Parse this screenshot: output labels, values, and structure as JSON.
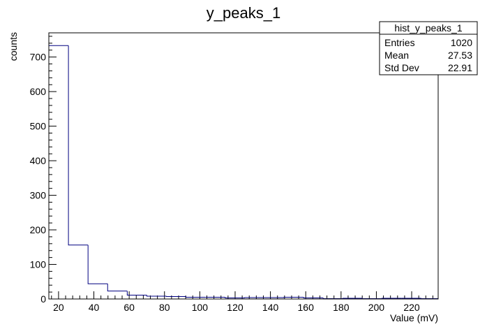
{
  "chart_data": {
    "type": "bar",
    "title": "y_peaks_1",
    "xlabel": "Value (mV)",
    "ylabel": "counts",
    "xlim": [
      14.5,
      235
    ],
    "ylim": [
      0,
      770
    ],
    "x_ticks": [
      20,
      40,
      60,
      80,
      100,
      120,
      140,
      160,
      180,
      200,
      220
    ],
    "y_ticks": [
      0,
      100,
      200,
      300,
      400,
      500,
      600,
      700
    ],
    "bins": [
      {
        "low": 14.5,
        "high": 25.6,
        "count": 733
      },
      {
        "low": 25.6,
        "high": 36.7,
        "count": 156
      },
      {
        "low": 36.7,
        "high": 47.8,
        "count": 44
      },
      {
        "low": 47.8,
        "high": 58.9,
        "count": 23
      },
      {
        "low": 58.9,
        "high": 70.0,
        "count": 11
      },
      {
        "low": 70.0,
        "high": 81.1,
        "count": 8
      },
      {
        "low": 81.1,
        "high": 92.2,
        "count": 7
      },
      {
        "low": 92.2,
        "high": 103.3,
        "count": 5
      },
      {
        "low": 103.3,
        "high": 114.4,
        "count": 5
      },
      {
        "low": 114.4,
        "high": 125.5,
        "count": 3
      },
      {
        "low": 125.5,
        "high": 136.6,
        "count": 4
      },
      {
        "low": 136.6,
        "high": 147.7,
        "count": 4
      },
      {
        "low": 147.7,
        "high": 158.8,
        "count": 5
      },
      {
        "low": 158.8,
        "high": 169.9,
        "count": 3
      },
      {
        "low": 169.9,
        "high": 181.0,
        "count": 1
      },
      {
        "low": 181.0,
        "high": 192.1,
        "count": 2
      },
      {
        "low": 192.1,
        "high": 203.2,
        "count": 1
      },
      {
        "low": 203.2,
        "high": 214.3,
        "count": 2
      },
      {
        "low": 214.3,
        "high": 225.4,
        "count": 2
      },
      {
        "low": 225.4,
        "high": 236.5,
        "count": 1
      }
    ],
    "grid": false,
    "line_color": "#000080",
    "stats_box": {
      "placement": "top-right",
      "title": "hist_y_peaks_1",
      "rows": [
        {
          "label": "Entries",
          "value": "1020"
        },
        {
          "label": "Mean",
          "value": "27.53"
        },
        {
          "label": "Std Dev",
          "value": "22.91"
        }
      ]
    }
  }
}
